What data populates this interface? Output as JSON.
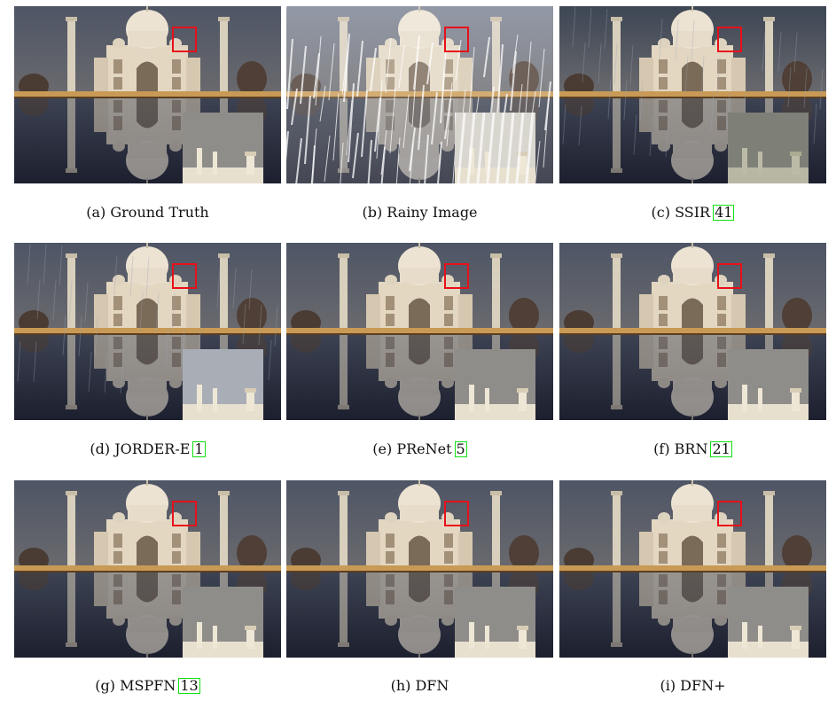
{
  "colors": {
    "highlight_box": "#e8101a",
    "citation_box": "#12e012"
  },
  "panels": [
    {
      "label": "(a) Ground Truth",
      "ref": "",
      "variant": "gt"
    },
    {
      "label": "(b) Rainy Image",
      "ref": "",
      "variant": "rain"
    },
    {
      "label": "(c) SSIR",
      "ref": "41",
      "variant": "ssir"
    },
    {
      "label": "(d) JORDER-E",
      "ref": "1",
      "variant": "jorder"
    },
    {
      "label": "(e) PReNet",
      "ref": "5",
      "variant": "clean"
    },
    {
      "label": "(f) BRN",
      "ref": "21",
      "variant": "clean"
    },
    {
      "label": "(g) MSPFN",
      "ref": "13",
      "variant": "clean"
    },
    {
      "label": "(h) DFN",
      "ref": "",
      "variant": "clean"
    },
    {
      "label": "(i) DFN+",
      "ref": "",
      "variant": "clean"
    }
  ]
}
